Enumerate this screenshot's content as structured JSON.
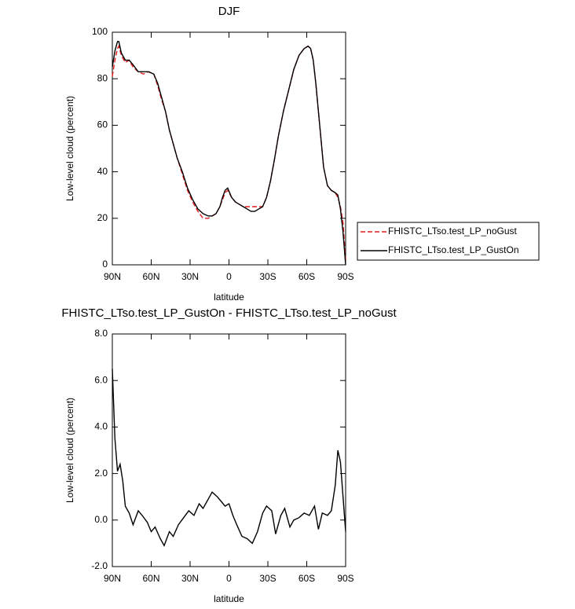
{
  "chart_data": [
    {
      "type": "line",
      "title": "DJF",
      "x_label": "latitude",
      "y_label": "Low-level cloud (percent)",
      "x": [
        90,
        88,
        86,
        85,
        83,
        80,
        77,
        74,
        70,
        66,
        62,
        58,
        55,
        52,
        49,
        46,
        43,
        40,
        36,
        32,
        28,
        24,
        20,
        16,
        13,
        10,
        7,
        5,
        3,
        1,
        -2,
        -5,
        -8,
        -11,
        -14,
        -17,
        -20,
        -23,
        -26,
        -29,
        -32,
        -35,
        -38,
        -42,
        -46,
        -50,
        -54,
        -58,
        -61,
        -63,
        -65,
        -67,
        -70,
        -73,
        -76,
        -79,
        -82,
        -84,
        -86,
        -88,
        -90
      ],
      "series": [
        {
          "name": "FHISTC_LTso.test_LP_noGust",
          "color": "#e41a1c",
          "line_style": "dashed",
          "values": [
            81,
            88,
            93,
            94,
            90,
            87,
            88,
            85,
            83,
            82,
            83,
            82,
            77,
            71,
            66,
            58,
            52,
            46,
            39,
            32,
            27,
            23,
            20,
            20,
            21,
            22,
            25,
            28,
            31,
            32,
            29,
            27,
            26,
            25,
            25,
            25,
            25,
            25,
            25,
            29,
            36,
            45,
            55,
            66,
            75,
            84,
            90,
            93,
            94,
            93,
            88,
            78,
            60,
            42,
            34,
            32,
            31,
            29,
            25,
            18,
            2
          ]
        },
        {
          "name": "FHISTC_LTso.test_LP_GustOn",
          "color": "#000000",
          "line_style": "solid",
          "values": [
            85,
            92,
            96,
            96,
            91,
            88,
            88,
            86,
            83,
            83,
            83,
            82,
            78,
            72,
            66,
            58,
            52,
            46,
            40,
            33,
            28,
            24,
            22,
            21,
            21,
            22,
            25,
            29,
            32,
            33,
            29,
            27,
            26,
            25,
            24,
            23,
            23,
            24,
            25,
            29,
            36,
            45,
            55,
            66,
            75,
            84,
            90,
            93,
            94,
            93,
            88,
            78,
            60,
            42,
            34,
            32,
            31,
            30,
            24,
            14,
            0
          ]
        }
      ],
      "xlim": [
        90,
        -90
      ],
      "xticks": [
        {
          "value": 90,
          "label": "90N"
        },
        {
          "value": 60,
          "label": "60N"
        },
        {
          "value": 30,
          "label": "30N"
        },
        0,
        {
          "value": -30,
          "label": "30S"
        },
        {
          "value": -60,
          "label": "60S"
        },
        {
          "value": -90,
          "label": "90S"
        }
      ],
      "ylim": [
        0,
        100
      ],
      "yticks": [
        0,
        20,
        40,
        60,
        80,
        100
      ],
      "legend": "right"
    },
    {
      "type": "line",
      "title": "FHISTC_LTso.test_LP_GustOn - FHISTC_LTso.test_LP_noGust",
      "x_label": "latitude",
      "y_label": "Low-level cloud (percent)",
      "x": [
        90,
        88,
        86,
        84,
        82,
        80,
        77,
        74,
        70,
        67,
        63,
        60,
        57,
        53,
        50,
        46,
        43,
        39,
        35,
        31,
        27,
        23,
        20,
        16,
        13,
        9,
        6,
        3,
        0,
        -3,
        -6,
        -10,
        -14,
        -18,
        -22,
        -26,
        -29,
        -33,
        -36,
        -40,
        -43,
        -47,
        -50,
        -54,
        -58,
        -62,
        -66,
        -69,
        -72,
        -76,
        -79,
        -82,
        -84,
        -86,
        -88,
        -90
      ],
      "series": [
        {
          "color": "#000000",
          "line_style": "solid",
          "values": [
            6.5,
            3.5,
            2.1,
            2.4,
            1.7,
            0.6,
            0.3,
            -0.2,
            0.4,
            0.2,
            -0.1,
            -0.5,
            -0.3,
            -0.8,
            -1.1,
            -0.5,
            -0.7,
            -0.2,
            0.1,
            0.4,
            0.2,
            0.7,
            0.5,
            0.9,
            1.2,
            1.0,
            0.8,
            0.6,
            0.7,
            0.2,
            -0.2,
            -0.7,
            -0.8,
            -1.0,
            -0.5,
            0.3,
            0.6,
            0.4,
            -0.6,
            0.2,
            0.5,
            -0.3,
            0.0,
            0.1,
            0.3,
            0.2,
            0.6,
            -0.4,
            0.3,
            0.2,
            0.4,
            1.5,
            3.0,
            2.5,
            1.0,
            -0.5
          ]
        }
      ],
      "xlim": [
        90,
        -90
      ],
      "xticks": [
        {
          "value": 90,
          "label": "90N"
        },
        {
          "value": 60,
          "label": "60N"
        },
        {
          "value": 30,
          "label": "30N"
        },
        0,
        {
          "value": -30,
          "label": "30S"
        },
        {
          "value": -60,
          "label": "60S"
        },
        {
          "value": -90,
          "label": "90S"
        }
      ],
      "ylim": [
        -2,
        8
      ],
      "yticks": [
        {
          "value": -2,
          "label": "-2.0"
        },
        {
          "value": 0,
          "label": "0.0"
        },
        {
          "value": 2,
          "label": "2.0"
        },
        {
          "value": 4,
          "label": "4.0"
        },
        {
          "value": 6,
          "label": "6.0"
        },
        {
          "value": 8,
          "label": "8.0"
        }
      ]
    }
  ]
}
